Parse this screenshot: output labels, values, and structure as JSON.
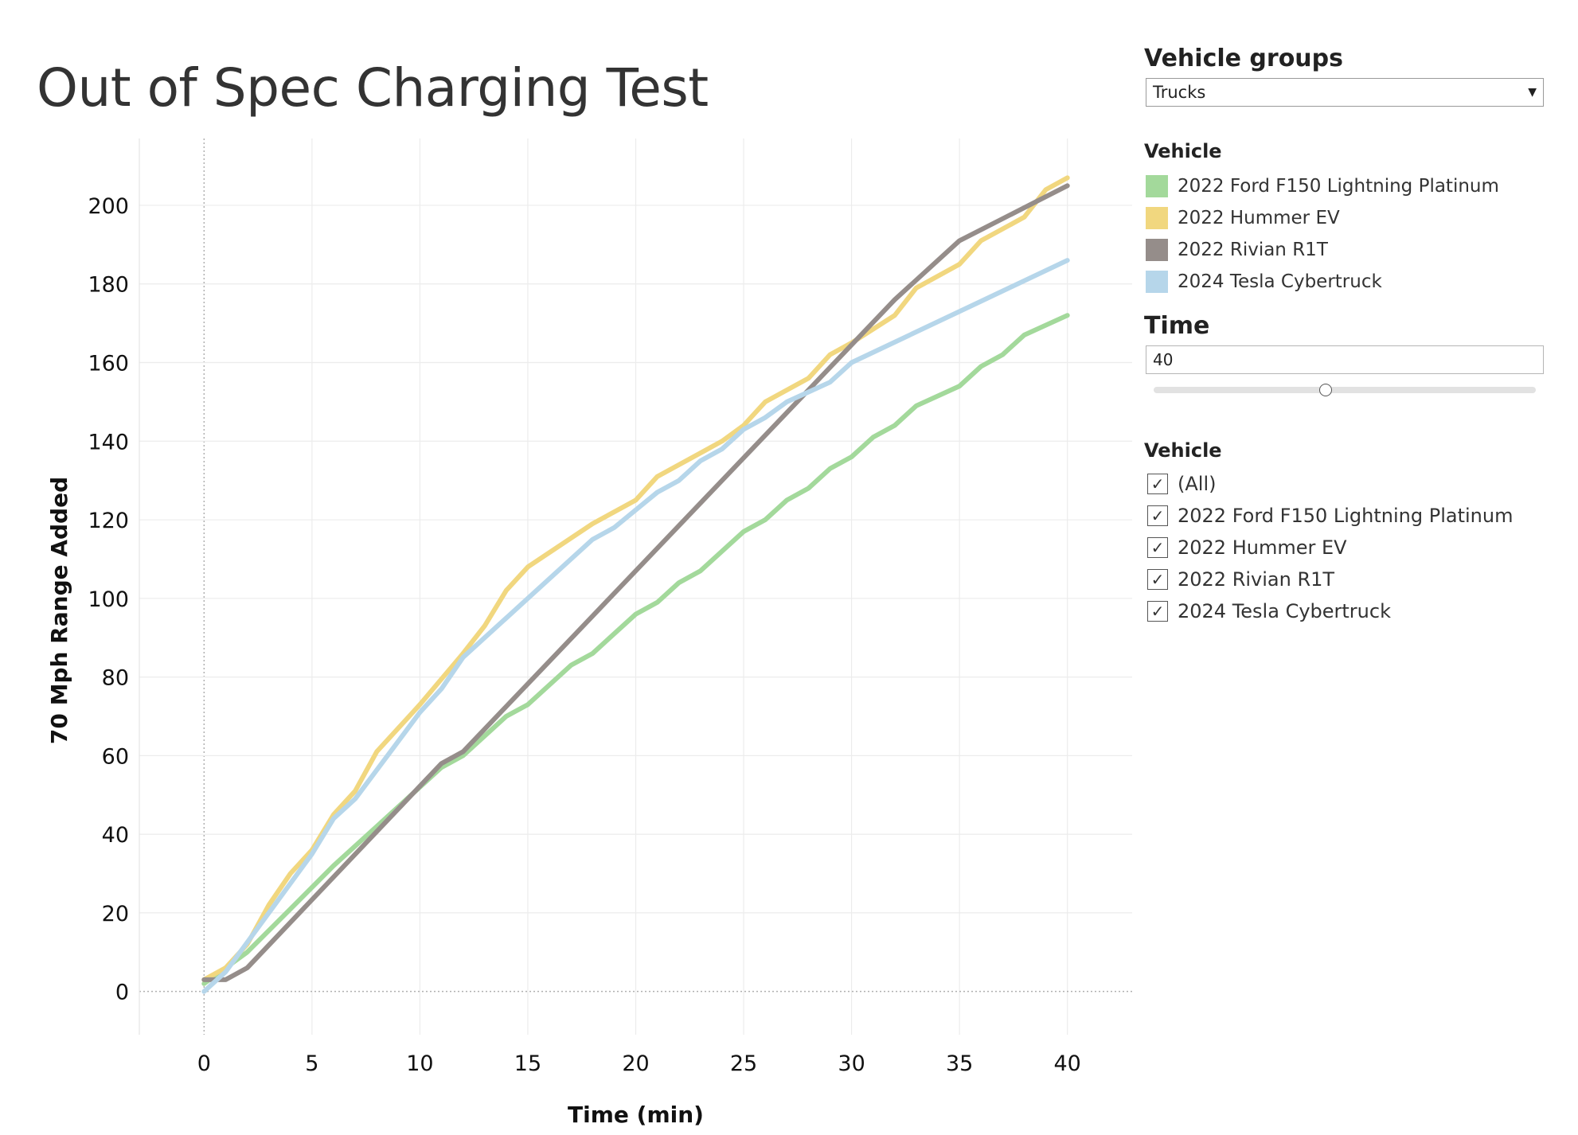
{
  "title": "Out of Spec Charging Test",
  "controls": {
    "vehicle_groups": {
      "label": "Vehicle groups",
      "value": "Trucks"
    },
    "legend": {
      "label": "Vehicle"
    },
    "time": {
      "label": "Time",
      "value": "40",
      "min": 0,
      "max": 80,
      "fraction": 0.45
    },
    "vehicle_filter": {
      "label": "Vehicle",
      "options": [
        {
          "label": "(All)",
          "checked": true
        },
        {
          "label": "2022 Ford F150 Lightning Platinum",
          "checked": true
        },
        {
          "label": "2022 Hummer EV",
          "checked": true
        },
        {
          "label": "2022 Rivian R1T",
          "checked": true
        },
        {
          "label": "2024 Tesla Cybertruck",
          "checked": true
        }
      ]
    }
  },
  "chart_data": {
    "type": "line",
    "xlabel": "Time (min)",
    "ylabel": "70 Mph Range Added",
    "xlim": [
      -3,
      43
    ],
    "ylim": [
      -11,
      217
    ],
    "xticks": [
      0,
      5,
      10,
      15,
      20,
      25,
      30,
      35,
      40
    ],
    "yticks": [
      0,
      20,
      40,
      60,
      80,
      100,
      120,
      140,
      160,
      180,
      200
    ],
    "grid": true,
    "legend_position": "right",
    "series": [
      {
        "name": "2022 Ford F150 Lightning Platinum",
        "color": "#a3d99b",
        "x": [
          0,
          2,
          4,
          6,
          8,
          10,
          11,
          12,
          14,
          15,
          17,
          18,
          20,
          21,
          22,
          23,
          25,
          26,
          27,
          28,
          29,
          30,
          31,
          32,
          33,
          35,
          36,
          37,
          38,
          40
        ],
        "y": [
          2,
          10,
          21,
          32,
          42,
          52,
          57,
          60,
          70,
          73,
          83,
          86,
          96,
          99,
          104,
          107,
          117,
          120,
          125,
          128,
          133,
          136,
          141,
          144,
          149,
          154,
          159,
          162,
          167,
          172
        ]
      },
      {
        "name": "2022 Hummer EV",
        "color": "#f1d77f",
        "x": [
          0,
          1,
          2,
          3,
          4,
          5,
          6,
          7,
          8,
          10,
          12,
          13,
          14,
          15,
          18,
          20,
          21,
          24,
          25,
          26,
          28,
          29,
          30,
          32,
          33,
          35,
          36,
          38,
          39,
          40
        ],
        "y": [
          3,
          6,
          12,
          22,
          30,
          36,
          45,
          51,
          61,
          73,
          86,
          93,
          102,
          108,
          119,
          125,
          131,
          140,
          144,
          150,
          156,
          162,
          165,
          172,
          179,
          185,
          191,
          197,
          204,
          207
        ]
      },
      {
        "name": "2022 Rivian R1T",
        "color": "#958d8a",
        "x": [
          0,
          1,
          2,
          11,
          12,
          32,
          35,
          40
        ],
        "y": [
          3,
          3,
          6,
          58,
          61,
          176,
          191,
          205
        ]
      },
      {
        "name": "2024 Tesla Cybertruck",
        "color": "#b6d6ea",
        "x": [
          0,
          1,
          3,
          5,
          6,
          7,
          10,
          11,
          12,
          18,
          19,
          21,
          22,
          23,
          24,
          25,
          26,
          27,
          29,
          30,
          40
        ],
        "y": [
          0,
          5,
          20,
          35,
          44,
          49,
          71,
          77,
          85,
          115,
          118,
          127,
          130,
          135,
          138,
          143,
          146,
          150,
          155,
          160,
          186
        ]
      }
    ]
  }
}
